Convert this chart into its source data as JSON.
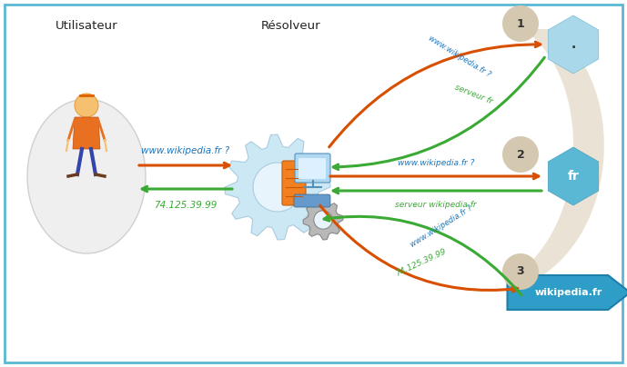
{
  "bg_color": "#ffffff",
  "border_color": "#5bb8d4",
  "utilisateur_label": "Utilisateur",
  "resolveur_label": "Résolveur",
  "node1_label": ".",
  "node2_label": "fr",
  "node3_label": "wikipedia.fr",
  "num1": "1",
  "num2": "2",
  "num3": "3",
  "arrow_color_orange": "#d94f00",
  "arrow_color_green": "#3aaa35",
  "text_color_blue": "#1a76bb",
  "text_color_green": "#3aaa35",
  "hex_fill_light": "#a8d8ea",
  "hex_fill": "#5bb8d4",
  "circle_num_fill": "#d4c9b0",
  "wikipedia_fill": "#2e9dc8",
  "curve_fill": "#e8dfd0",
  "query_u": "www.wikipedia.fr ?",
  "response_u": "74.125.39.99",
  "query_1": "www.wikipedia.fr ?",
  "response_1": "serveur fr",
  "query_2": "www.wikipedia.fr ?",
  "response_2": "serveur wikipedia.fr",
  "query_3": "www.wikipedia.fr ?",
  "response_3": "74.125.39.99"
}
